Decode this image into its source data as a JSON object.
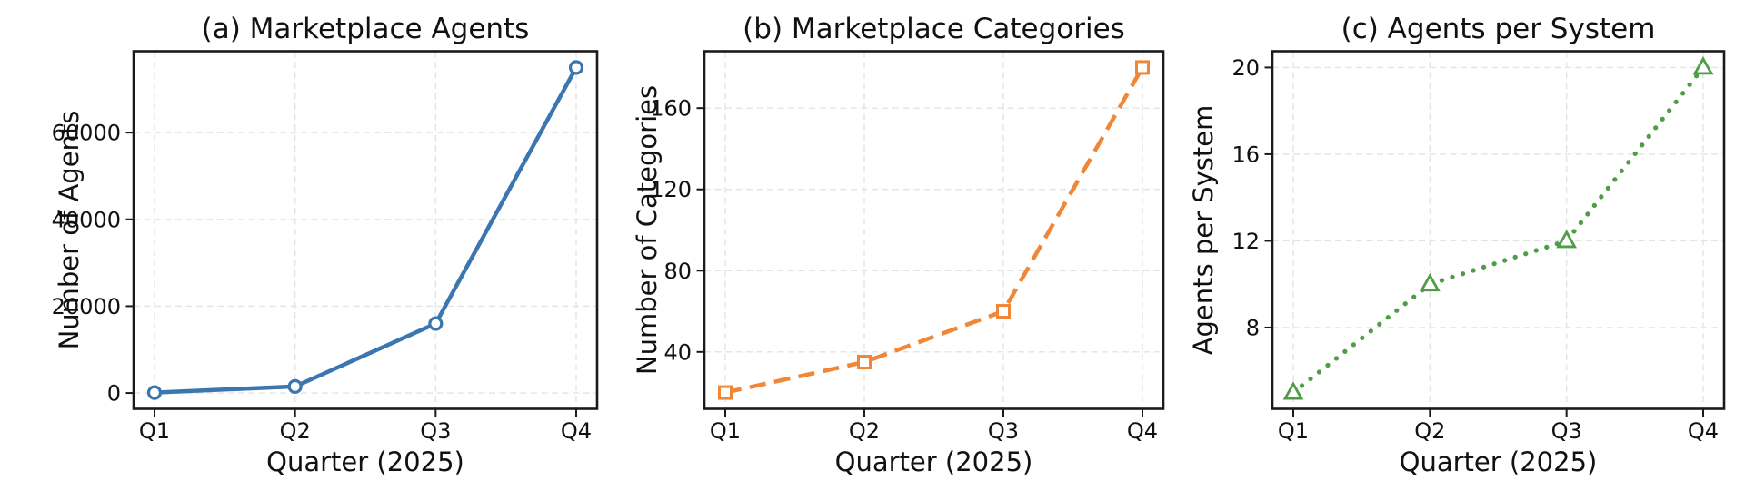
{
  "figure": {
    "background": "#ffffff",
    "grid_color": "#e4e4e4",
    "spine_color": "#1a1a1a",
    "text_color": "#111111",
    "xlabel": "Quarter (2025)",
    "categories": [
      "Q1",
      "Q2",
      "Q3",
      "Q4"
    ]
  },
  "chart_data": [
    {
      "type": "line",
      "panel": "a",
      "title": "(a) Marketplace Agents",
      "xlabel": "Quarter (2025)",
      "ylabel": "Number of Agents",
      "categories": [
        "Q1",
        "Q2",
        "Q3",
        "Q4"
      ],
      "values": [
        100,
        1500,
        16000,
        75000
      ],
      "yticks": [
        0,
        20000,
        40000,
        60000
      ],
      "ylim": [
        -3645,
        78745
      ],
      "line_style": "solid",
      "marker": "circle",
      "color": "#3b76af",
      "marker_fill": "#ffffff",
      "grid": true,
      "legend": null
    },
    {
      "type": "line",
      "panel": "b",
      "title": "(b) Marketplace Categories",
      "xlabel": "Quarter (2025)",
      "ylabel": "Number of Categories",
      "categories": [
        "Q1",
        "Q2",
        "Q3",
        "Q4"
      ],
      "values": [
        20,
        35,
        60,
        180
      ],
      "yticks": [
        40,
        80,
        120,
        160
      ],
      "ylim": [
        12,
        188
      ],
      "line_style": "dashed",
      "marker": "square",
      "color": "#f08636",
      "marker_fill": "#ffffff",
      "grid": true,
      "legend": null
    },
    {
      "type": "line",
      "panel": "c",
      "title": "(c) Agents per System",
      "xlabel": "Quarter (2025)",
      "ylabel": "Agents per System",
      "categories": [
        "Q1",
        "Q2",
        "Q3",
        "Q4"
      ],
      "values": [
        5,
        10,
        12,
        20
      ],
      "yticks": [
        8,
        12,
        16,
        20
      ],
      "ylim": [
        4.25,
        20.75
      ],
      "line_style": "dotted",
      "marker": "triangle-up",
      "color": "#4f9d45",
      "marker_fill": "#ffffff",
      "grid": true,
      "legend": null
    }
  ]
}
